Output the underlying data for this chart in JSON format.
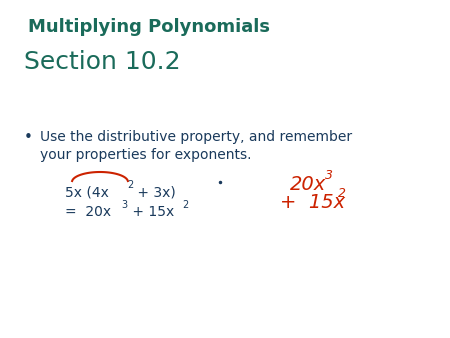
{
  "title": "Multiplying Polynomials",
  "subtitle": "Section 10.2",
  "bullet_text_line1": "Use the distributive property, and remember",
  "bullet_text_line2": "your properties for exponents.",
  "title_color": "#1a6b5a",
  "subtitle_color": "#1a3a5c",
  "bullet_color": "#1a3a5c",
  "body_color": "#1a3a5c",
  "handwritten_color": "#cc2200",
  "bg_color": "#ffffff",
  "title_fontsize": 13,
  "subtitle_fontsize": 18,
  "bullet_fontsize": 10,
  "expr_fontsize": 10,
  "hw_fontsize": 14
}
